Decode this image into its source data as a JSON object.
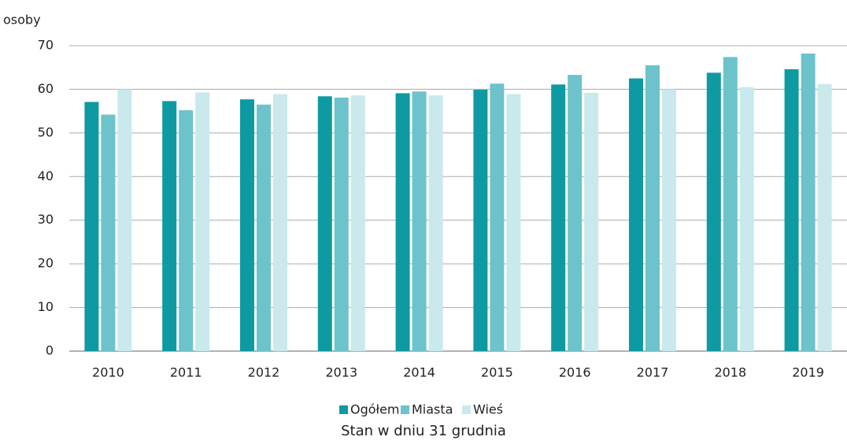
{
  "chart_data": {
    "type": "bar",
    "y_label": "osoby",
    "caption": "Stan w dniu 31 grudnia",
    "categories": [
      "2010",
      "2011",
      "2012",
      "2013",
      "2014",
      "2015",
      "2016",
      "2017",
      "2018",
      "2019"
    ],
    "series": [
      {
        "name": "Ogółem",
        "color": "#0e9aa2",
        "values": [
          57.1,
          57.3,
          57.7,
          58.4,
          59.1,
          59.9,
          61.1,
          62.5,
          63.8,
          64.6
        ]
      },
      {
        "name": "Miasta",
        "color": "#6cc3cb",
        "values": [
          54.2,
          55.2,
          56.5,
          58.1,
          59.5,
          61.3,
          63.3,
          65.5,
          67.4,
          68.2
        ]
      },
      {
        "name": "Wieś",
        "color": "#c9e9ec",
        "values": [
          60.0,
          59.3,
          58.9,
          58.6,
          58.6,
          58.9,
          59.2,
          60.0,
          60.5,
          61.2
        ]
      }
    ],
    "ylim": [
      0,
      70
    ],
    "yticks": [
      0,
      10,
      20,
      30,
      40,
      50,
      60,
      70
    ],
    "grid": true,
    "legend": "bottom"
  }
}
